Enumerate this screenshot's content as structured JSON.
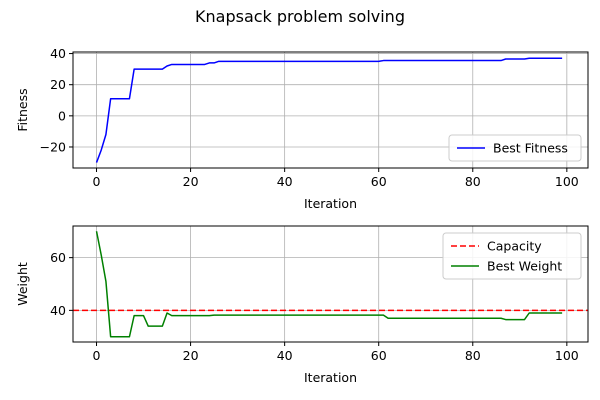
{
  "figure": {
    "suptitle": "Knapsack problem solving"
  },
  "chart_data": [
    {
      "type": "line",
      "title": "",
      "xlabel": "Iteration",
      "ylabel": "Fitness",
      "xlim": [
        -5,
        104.5
      ],
      "ylim": [
        -33.5,
        41
      ],
      "xticks": [
        0,
        20,
        40,
        60,
        80,
        100
      ],
      "yticks": [
        -20,
        0,
        20,
        40
      ],
      "tick_labels_x": [
        "0",
        "20",
        "40",
        "60",
        "80",
        "100"
      ],
      "tick_labels_y": [
        "−20",
        "0",
        "20",
        "40"
      ],
      "grid": true,
      "legend": "lower-right",
      "series": [
        {
          "name": "Best Fitness",
          "color": "#0000ff",
          "style": "solid",
          "x": [
            0,
            1,
            2,
            3,
            4,
            5,
            6,
            7,
            8,
            9,
            10,
            11,
            12,
            13,
            14,
            15,
            16,
            17,
            18,
            19,
            20,
            21,
            22,
            23,
            24,
            25,
            26,
            27,
            28,
            29,
            30,
            35,
            40,
            45,
            50,
            55,
            60,
            61,
            65,
            70,
            75,
            80,
            86,
            87,
            88,
            89,
            90,
            91,
            92,
            93,
            94,
            95,
            96,
            97,
            98,
            99
          ],
          "y": [
            -30,
            -22,
            -12,
            11,
            11,
            11,
            11,
            11,
            30,
            30,
            30,
            30,
            30,
            30,
            30,
            32,
            33,
            33,
            33,
            33,
            33,
            33,
            33,
            33,
            34,
            34,
            35,
            35,
            35,
            35,
            35,
            35,
            35,
            35,
            35,
            35,
            35,
            35.5,
            35.5,
            35.5,
            35.5,
            35.5,
            35.5,
            36.5,
            36.5,
            36.5,
            36.5,
            36.5,
            37,
            37,
            37,
            37,
            37,
            37,
            37,
            37
          ]
        }
      ]
    },
    {
      "type": "line",
      "title": "",
      "xlabel": "Iteration",
      "ylabel": "Weight",
      "xlim": [
        -5,
        104.5
      ],
      "ylim": [
        28,
        72
      ],
      "xticks": [
        0,
        20,
        40,
        60,
        80,
        100
      ],
      "yticks": [
        40,
        60
      ],
      "tick_labels_x": [
        "0",
        "20",
        "40",
        "60",
        "80",
        "100"
      ],
      "tick_labels_y": [
        "40",
        "60"
      ],
      "grid": true,
      "legend": "upper-right",
      "series": [
        {
          "name": "Capacity",
          "color": "#ff0000",
          "style": "dashed",
          "x": [
            -5,
            104.5
          ],
          "y": [
            40,
            40
          ]
        },
        {
          "name": "Best Weight",
          "color": "#008000",
          "style": "solid",
          "x": [
            0,
            1,
            2,
            3,
            4,
            5,
            6,
            7,
            8,
            9,
            10,
            11,
            12,
            13,
            14,
            15,
            16,
            17,
            18,
            19,
            20,
            21,
            22,
            23,
            24,
            25,
            26,
            27,
            28,
            29,
            30,
            35,
            40,
            45,
            50,
            55,
            60,
            61,
            62,
            65,
            70,
            75,
            80,
            86,
            87,
            88,
            89,
            90,
            91,
            92,
            93,
            94,
            95,
            96,
            97,
            98,
            99
          ],
          "y": [
            70,
            61,
            51,
            30,
            30,
            30,
            30,
            30,
            38,
            38,
            38,
            34,
            34,
            34,
            34,
            39,
            38,
            38,
            38,
            38,
            38,
            38,
            38,
            38,
            38,
            38.2,
            38.2,
            38.2,
            38.2,
            38.2,
            38.2,
            38.2,
            38.2,
            38.2,
            38.2,
            38.2,
            38.2,
            38.2,
            37,
            37,
            37,
            37,
            37,
            37,
            36.5,
            36.5,
            36.5,
            36.5,
            36.5,
            39,
            39,
            39,
            39,
            39,
            39,
            39,
            39
          ]
        }
      ]
    }
  ]
}
